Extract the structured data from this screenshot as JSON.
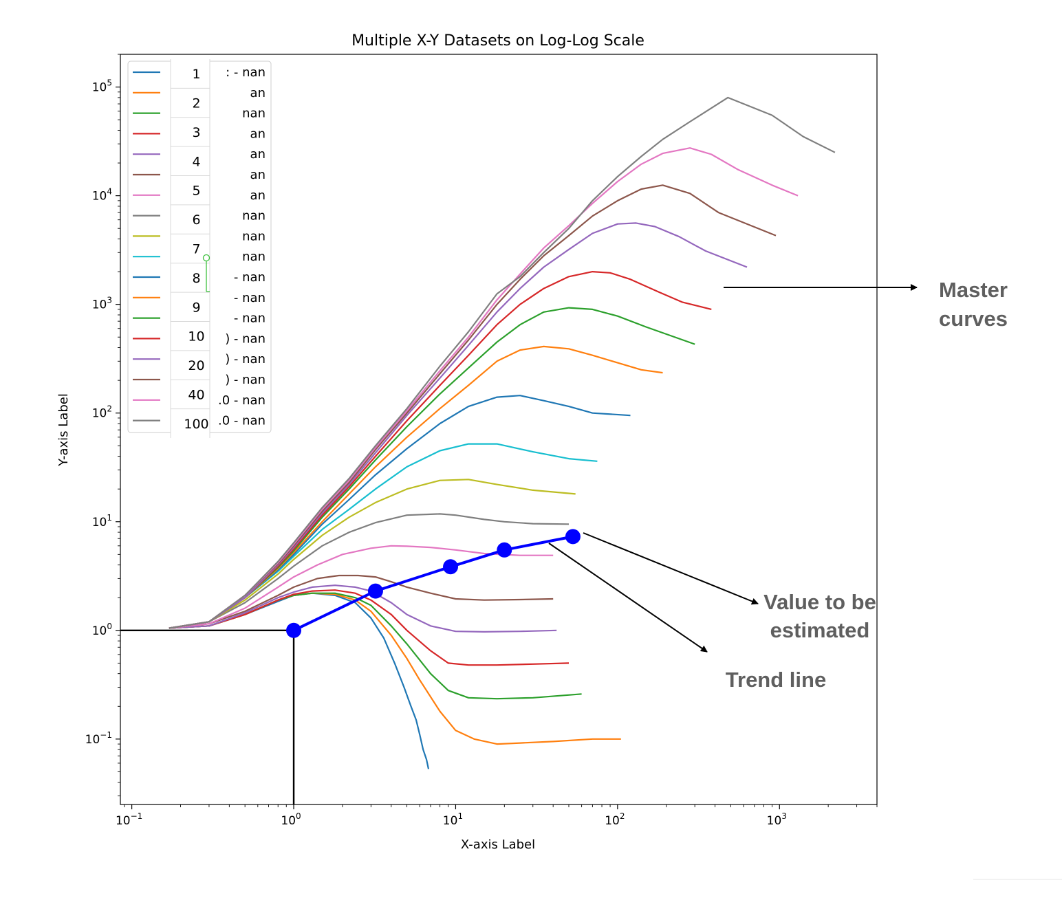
{
  "chart_data": {
    "type": "line",
    "title": "Multiple X-Y Datasets on Log-Log Scale",
    "xlabel": "X-axis Label",
    "ylabel": "Y-axis Label",
    "xscale": "log",
    "yscale": "log",
    "xlim": [
      0.085,
      4000
    ],
    "ylim": [
      0.025,
      200000
    ],
    "x_ticks": [
      {
        "value": 0.1,
        "base": "10",
        "exp": "−1"
      },
      {
        "value": 1,
        "base": "10",
        "exp": "0"
      },
      {
        "value": 10,
        "base": "10",
        "exp": "1"
      },
      {
        "value": 100,
        "base": "10",
        "exp": "2"
      },
      {
        "value": 1000,
        "base": "10",
        "exp": "3"
      }
    ],
    "y_ticks": [
      {
        "value": 0.1,
        "base": "10",
        "exp": "−1"
      },
      {
        "value": 1,
        "base": "10",
        "exp": "0"
      },
      {
        "value": 10,
        "base": "10",
        "exp": "1"
      },
      {
        "value": 100,
        "base": "10",
        "exp": "2"
      },
      {
        "value": 1000,
        "base": "10",
        "exp": "3"
      },
      {
        "value": 10000,
        "base": "10",
        "exp": "4"
      },
      {
        "value": 100000,
        "base": "10",
        "exp": "5"
      }
    ],
    "grid": false,
    "legend_position": "top-left",
    "legend_entries": [
      {
        "color": "#1f77b4",
        "text": ": - nan"
      },
      {
        "color": "#ff7f0e",
        "text": "an"
      },
      {
        "color": "#2ca02c",
        "text": "nan"
      },
      {
        "color": "#d62728",
        "text": "an"
      },
      {
        "color": "#9467bd",
        "text": "an"
      },
      {
        "color": "#8c564b",
        "text": "an"
      },
      {
        "color": "#e377c2",
        "text": "an"
      },
      {
        "color": "#7f7f7f",
        "text": "nan"
      },
      {
        "color": "#bcbd22",
        "text": "nan"
      },
      {
        "color": "#17becf",
        "text": "nan"
      },
      {
        "color": "#1f77b4",
        "text": "- nan"
      },
      {
        "color": "#ff7f0e",
        "text": "- nan"
      },
      {
        "color": "#2ca02c",
        "text": "- nan"
      },
      {
        "color": "#d62728",
        "text": ") - nan"
      },
      {
        "color": "#9467bd",
        "text": ") - nan"
      },
      {
        "color": "#8c564b",
        "text": ") - nan"
      },
      {
        "color": "#e377c2",
        "text": ".0 - nan"
      },
      {
        "color": "#7f7f7f",
        "text": ".0 - nan"
      }
    ],
    "overlay_labels": [
      "1",
      "2",
      "3",
      "4",
      "5",
      "6",
      "7",
      "8",
      "9",
      "10",
      "20",
      "40",
      "100"
    ],
    "series": [
      {
        "color": "#1f77b4",
        "x": [
          0.17,
          0.3,
          0.5,
          0.8,
          1.0,
          1.3,
          1.8,
          2.4,
          3.0,
          3.6,
          4.2,
          4.8,
          5.3,
          5.7,
          6.0,
          6.3,
          6.6,
          6.8
        ],
        "y": [
          1.05,
          1.1,
          1.4,
          1.85,
          2.1,
          2.2,
          2.1,
          1.8,
          1.3,
          0.85,
          0.5,
          0.3,
          0.2,
          0.15,
          0.11,
          0.08,
          0.065,
          0.053
        ]
      },
      {
        "color": "#ff7f0e",
        "x": [
          0.17,
          0.3,
          0.5,
          0.8,
          1.0,
          1.3,
          1.8,
          2.4,
          3.0,
          4.0,
          5.0,
          6.0,
          8.0,
          10,
          13,
          18,
          25,
          40,
          70,
          105
        ],
        "y": [
          1.05,
          1.1,
          1.4,
          1.9,
          2.1,
          2.2,
          2.15,
          1.9,
          1.5,
          0.9,
          0.55,
          0.35,
          0.18,
          0.12,
          0.1,
          0.09,
          0.092,
          0.095,
          0.1,
          0.1
        ]
      },
      {
        "color": "#2ca02c",
        "x": [
          0.17,
          0.3,
          0.5,
          0.8,
          1.0,
          1.3,
          1.8,
          2.4,
          3.0,
          4.0,
          5.0,
          7.0,
          9.0,
          12,
          18,
          30,
          60
        ],
        "y": [
          1.05,
          1.1,
          1.4,
          1.9,
          2.1,
          2.2,
          2.2,
          2.0,
          1.7,
          1.1,
          0.75,
          0.4,
          0.28,
          0.24,
          0.235,
          0.24,
          0.26
        ]
      },
      {
        "color": "#d62728",
        "x": [
          0.17,
          0.3,
          0.5,
          0.8,
          1.0,
          1.3,
          1.8,
          2.4,
          3.0,
          4.0,
          5.0,
          7.0,
          9.0,
          12,
          18,
          30,
          50
        ],
        "y": [
          1.05,
          1.1,
          1.4,
          1.9,
          2.15,
          2.3,
          2.35,
          2.2,
          1.9,
          1.4,
          1.0,
          0.65,
          0.5,
          0.48,
          0.48,
          0.49,
          0.5
        ]
      },
      {
        "color": "#9467bd",
        "x": [
          0.17,
          0.3,
          0.5,
          0.8,
          1.0,
          1.3,
          1.8,
          2.4,
          3.0,
          4.0,
          5.0,
          7.0,
          10,
          15,
          25,
          42
        ],
        "y": [
          1.05,
          1.1,
          1.45,
          2.0,
          2.25,
          2.5,
          2.6,
          2.5,
          2.3,
          1.8,
          1.4,
          1.1,
          0.98,
          0.97,
          0.98,
          1.0
        ]
      },
      {
        "color": "#8c564b",
        "x": [
          0.17,
          0.3,
          0.5,
          0.8,
          1.0,
          1.4,
          1.9,
          2.5,
          3.2,
          4.0,
          5.0,
          7.0,
          10,
          15,
          25,
          40
        ],
        "y": [
          1.05,
          1.15,
          1.5,
          2.1,
          2.5,
          3.0,
          3.2,
          3.2,
          3.1,
          2.8,
          2.5,
          2.2,
          1.95,
          1.9,
          1.92,
          1.95
        ]
      },
      {
        "color": "#e377c2",
        "x": [
          0.17,
          0.3,
          0.5,
          0.8,
          1.0,
          1.4,
          2.0,
          3.0,
          4.0,
          5.0,
          7.0,
          10,
          15,
          25,
          40
        ],
        "y": [
          1.05,
          1.15,
          1.6,
          2.5,
          3.1,
          4.0,
          5.0,
          5.7,
          6.0,
          5.95,
          5.8,
          5.5,
          5.1,
          4.9,
          4.9
        ]
      },
      {
        "color": "#7f7f7f",
        "x": [
          0.17,
          0.3,
          0.5,
          0.8,
          1.0,
          1.5,
          2.2,
          3.2,
          5.0,
          8.0,
          10,
          15,
          20,
          30,
          50
        ],
        "y": [
          1.05,
          1.2,
          1.8,
          3.0,
          3.9,
          6.0,
          8.0,
          9.8,
          11.5,
          11.8,
          11.5,
          10.5,
          10,
          9.6,
          9.5
        ]
      },
      {
        "color": "#bcbd22",
        "x": [
          0.17,
          0.3,
          0.5,
          0.8,
          1.0,
          1.5,
          2.2,
          3.2,
          5.0,
          8.0,
          12,
          18,
          30,
          55
        ],
        "y": [
          1.05,
          1.2,
          1.9,
          3.3,
          4.5,
          7.5,
          11,
          15,
          20,
          24,
          24.5,
          22,
          19.5,
          18
        ]
      },
      {
        "color": "#17becf",
        "x": [
          0.17,
          0.3,
          0.5,
          0.8,
          1.0,
          1.5,
          2.2,
          3.2,
          5.0,
          8.0,
          12,
          18,
          30,
          50,
          75
        ],
        "y": [
          1.05,
          1.2,
          2.0,
          3.5,
          4.8,
          8.5,
          13,
          20,
          32,
          45,
          52,
          52,
          44,
          38,
          36
        ]
      },
      {
        "color": "#1f77b4",
        "x": [
          0.17,
          0.3,
          0.5,
          0.8,
          1.0,
          1.5,
          2.2,
          3.2,
          5.0,
          8.0,
          12,
          18,
          25,
          35,
          50,
          70,
          120
        ],
        "y": [
          1.05,
          1.2,
          2.0,
          3.6,
          5.0,
          9.5,
          16,
          27,
          47,
          80,
          115,
          140,
          145,
          130,
          115,
          100,
          95
        ]
      },
      {
        "color": "#ff7f0e",
        "x": [
          0.17,
          0.3,
          0.5,
          0.8,
          1.0,
          1.5,
          2.2,
          3.2,
          5.0,
          8.0,
          12,
          18,
          25,
          35,
          50,
          70,
          100,
          140,
          190
        ],
        "y": [
          1.05,
          1.2,
          2.0,
          3.7,
          5.2,
          10,
          18,
          32,
          60,
          110,
          180,
          300,
          380,
          410,
          390,
          340,
          290,
          250,
          235
        ]
      },
      {
        "color": "#2ca02c",
        "x": [
          0.17,
          0.3,
          0.5,
          0.8,
          1.0,
          1.5,
          2.2,
          3.2,
          5.0,
          8.0,
          12,
          18,
          25,
          35,
          50,
          70,
          100,
          150,
          300
        ],
        "y": [
          1.05,
          1.2,
          2.0,
          3.8,
          5.4,
          11,
          20,
          37,
          75,
          150,
          260,
          450,
          650,
          850,
          930,
          900,
          780,
          620,
          430
        ]
      },
      {
        "color": "#d62728",
        "x": [
          0.17,
          0.3,
          0.5,
          0.8,
          1.0,
          1.5,
          2.2,
          3.2,
          5.0,
          8.0,
          12,
          18,
          25,
          35,
          50,
          70,
          90,
          120,
          180,
          250,
          380
        ],
        "y": [
          1.05,
          1.2,
          2.0,
          3.9,
          5.6,
          11.5,
          21,
          40,
          85,
          180,
          340,
          650,
          1000,
          1400,
          1800,
          2000,
          1950,
          1700,
          1300,
          1050,
          900
        ]
      },
      {
        "color": "#9467bd",
        "x": [
          0.17,
          0.3,
          0.5,
          0.8,
          1.0,
          1.5,
          2.2,
          3.2,
          5.0,
          8.0,
          12,
          18,
          25,
          35,
          50,
          70,
          100,
          130,
          170,
          240,
          350,
          630
        ],
        "y": [
          1.05,
          1.2,
          2.0,
          4.0,
          5.8,
          12,
          22,
          43,
          95,
          210,
          420,
          850,
          1400,
          2200,
          3200,
          4500,
          5500,
          5600,
          5200,
          4200,
          3100,
          2200
        ]
      },
      {
        "color": "#8c564b",
        "x": [
          0.17,
          0.3,
          0.5,
          0.8,
          1.0,
          1.5,
          2.2,
          3.2,
          5.0,
          8.0,
          12,
          18,
          25,
          35,
          50,
          70,
          100,
          140,
          190,
          280,
          420,
          950
        ],
        "y": [
          1.05,
          1.2,
          2.1,
          4.1,
          6.0,
          12.5,
          23,
          46,
          100,
          230,
          470,
          1000,
          1700,
          2800,
          4300,
          6500,
          9000,
          11500,
          12500,
          10500,
          7000,
          4300
        ]
      },
      {
        "color": "#e377c2",
        "x": [
          0.17,
          0.3,
          0.5,
          0.8,
          1.0,
          1.5,
          2.2,
          3.2,
          5.0,
          8.0,
          12,
          18,
          25,
          35,
          50,
          70,
          100,
          140,
          190,
          280,
          380,
          550,
          900,
          1300
        ],
        "y": [
          1.05,
          1.2,
          2.1,
          4.2,
          6.2,
          13,
          24,
          48,
          105,
          245,
          500,
          1100,
          1900,
          3300,
          5300,
          8500,
          13500,
          19500,
          24500,
          27500,
          24000,
          17500,
          12500,
          10000
        ]
      },
      {
        "color": "#7f7f7f",
        "x": [
          0.17,
          0.3,
          0.5,
          0.8,
          1.0,
          1.5,
          2.2,
          3.2,
          5.0,
          8.0,
          12,
          18,
          25,
          35,
          50,
          70,
          100,
          140,
          190,
          280,
          480,
          900,
          1400,
          2200
        ],
        "y": [
          1.05,
          1.2,
          2.1,
          4.3,
          6.4,
          13.5,
          25,
          50,
          110,
          270,
          560,
          1250,
          1800,
          3000,
          5000,
          9000,
          15000,
          23000,
          33000,
          48000,
          80000,
          55000,
          35000,
          25000
        ]
      }
    ],
    "trend_line": {
      "color": "#0000ff",
      "x": [
        1.0,
        3.2,
        9.3,
        20,
        53
      ],
      "y": [
        1.0,
        2.3,
        3.85,
        5.5,
        7.3
      ]
    },
    "guide_point": {
      "x": 1.0,
      "y": 1.0
    },
    "annotations": [
      {
        "id": "master",
        "lines": [
          "Master",
          "curves"
        ]
      },
      {
        "id": "value",
        "lines": [
          "Value to be",
          "estimated"
        ]
      },
      {
        "id": "trend",
        "lines": [
          "Trend line"
        ]
      }
    ]
  }
}
